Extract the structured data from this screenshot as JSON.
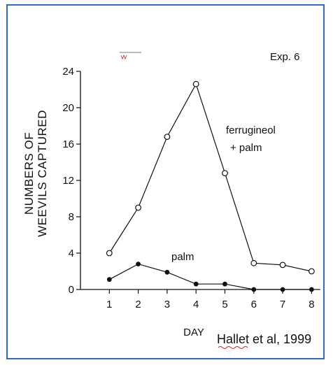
{
  "chart_data": {
    "type": "line",
    "xlabel": "DAY",
    "ylabel_lines": [
      "NUMBERS OF",
      "WEEVILS CAPTURED"
    ],
    "experiment_label": "Exp. 6",
    "citation": "Hallet et al, 1999",
    "x": [
      1,
      2,
      3,
      4,
      5,
      6,
      7,
      8
    ],
    "xlim": [
      0,
      8.3
    ],
    "ylim": [
      0,
      24
    ],
    "yticks": [
      0,
      4,
      8,
      12,
      16,
      20,
      24
    ],
    "xticks": [
      1,
      2,
      3,
      4,
      5,
      6,
      7,
      8
    ],
    "grid": false,
    "series": [
      {
        "name_lines": [
          "ferrugineol",
          "+ palm"
        ],
        "marker": "open-circle",
        "values": [
          4,
          9,
          16.8,
          22.6,
          12.8,
          2.9,
          2.7,
          2
        ]
      },
      {
        "name_lines": [
          "palm"
        ],
        "marker": "filled-circle",
        "values": [
          1.1,
          2.8,
          1.9,
          0.6,
          0.6,
          0,
          0,
          0
        ]
      }
    ]
  },
  "colors": {
    "frame": "#2c6cc8",
    "ink": "#111111",
    "underline": "#cc2222"
  }
}
